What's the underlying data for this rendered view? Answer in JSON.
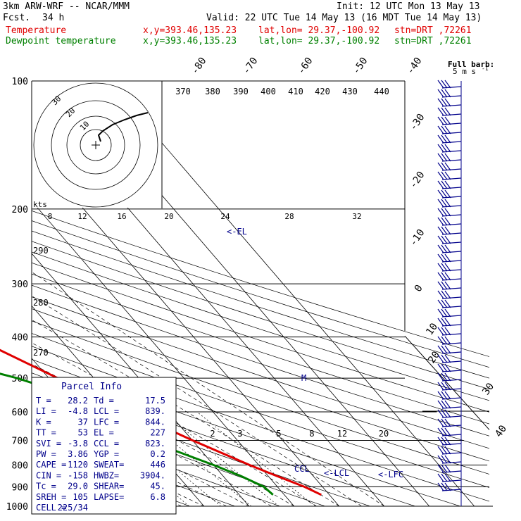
{
  "header": {
    "model": "3km ARW-WRF -- NCAR/MMM",
    "fcst_label": "Fcst.",
    "fcst_value": "34 h",
    "init": "Init: 12 UTC Mon 13 May 13",
    "valid": "Valid: 22 UTC Tue 14 May 13 (16 MDT Tue 14 May 13)",
    "temp_label": "Temperature",
    "dew_label": "Dewpoint temperature",
    "xy": "x,y=393.46,135.23",
    "latlon": "lat,lon= 29.37,-100.92",
    "stn": "stn=DRT ,72261"
  },
  "barb_legend": {
    "title": "Full barb:",
    "value": "5 m s",
    "exp": "-1"
  },
  "parcel_info": {
    "title": "Parcel Info",
    "rows": [
      [
        "T   =",
        "28.2",
        "Td =",
        "17.5"
      ],
      [
        "LI  =",
        "-4.8",
        "LCL =",
        "839."
      ],
      [
        "K   =",
        "37",
        "LFC =",
        "844."
      ],
      [
        "TT  =",
        "53",
        "EL  =",
        "227"
      ],
      [
        "SVI =",
        "-3.8",
        "CCL =",
        "823."
      ],
      [
        "PW  =",
        "3.86",
        "YGP =",
        "0.2"
      ],
      [
        "CAPE =",
        "1120",
        "SWEAT=",
        "446"
      ],
      [
        "CIN  =",
        "-158",
        "HWBZ=",
        "3904."
      ],
      [
        "Tc  =",
        "29.0",
        "SHEAR=",
        "45."
      ],
      [
        "SREH =",
        "105",
        "LAPSE=",
        "6.8"
      ],
      [
        "CELL =",
        "225/34",
        "",
        ""
      ]
    ]
  },
  "hodograph": {
    "ring_labels": [
      "30",
      "20",
      "10"
    ],
    "unit": "kts",
    "speed_labels": [
      "8",
      "12",
      "16",
      "20",
      "24",
      "28",
      "32"
    ]
  },
  "chart_data": {
    "type": "line",
    "title": "Skew-T log-P sounding",
    "xlabel": "",
    "ylabel": "",
    "pressure_levels": [
      100,
      200,
      300,
      400,
      500,
      600,
      700,
      800,
      900,
      1000
    ],
    "isotherm_labels": [
      "-80",
      "-70",
      "-60",
      "-50",
      "-40",
      "-30",
      "-20",
      "-10",
      "0",
      "10",
      "20",
      "30",
      "40"
    ],
    "dry_adiabat_labels": [
      "370",
      "380",
      "390",
      "400",
      "410",
      "420",
      "430",
      "440"
    ],
    "left_theta_labels": [
      "290",
      "280",
      "270"
    ],
    "mixing_ratio_labels": [
      "2",
      "3",
      "5",
      "8",
      "12",
      "20"
    ],
    "level_markers": [
      "<-EL",
      "M",
      "<-LCL",
      "<-LFC",
      "CCL"
    ],
    "series": [
      {
        "name": "Temperature",
        "color": "#e00000",
        "points": [
          [
            100,
            -69
          ],
          [
            125,
            -61
          ],
          [
            150,
            -57
          ],
          [
            175,
            -55
          ],
          [
            200,
            -52
          ],
          [
            250,
            -43
          ],
          [
            300,
            -34
          ],
          [
            400,
            -19
          ],
          [
            500,
            -8
          ],
          [
            600,
            2
          ],
          [
            650,
            6
          ],
          [
            700,
            10
          ],
          [
            800,
            18
          ],
          [
            850,
            22
          ],
          [
            900,
            26
          ],
          [
            940,
            28.2
          ]
        ]
      },
      {
        "name": "Dewpoint temperature",
        "color": "#008000",
        "points": [
          [
            100,
            -84
          ],
          [
            150,
            -87
          ],
          [
            200,
            -84
          ],
          [
            250,
            -87
          ],
          [
            300,
            -81
          ],
          [
            330,
            -91
          ],
          [
            350,
            -98
          ],
          [
            400,
            -60
          ],
          [
            450,
            -30
          ],
          [
            500,
            -17
          ],
          [
            600,
            0
          ],
          [
            650,
            1
          ],
          [
            700,
            0
          ],
          [
            800,
            10
          ],
          [
            850,
            14
          ],
          [
            900,
            17
          ],
          [
            940,
            17.5
          ]
        ]
      }
    ],
    "ylim": [
      1000,
      100
    ],
    "grid": true
  }
}
